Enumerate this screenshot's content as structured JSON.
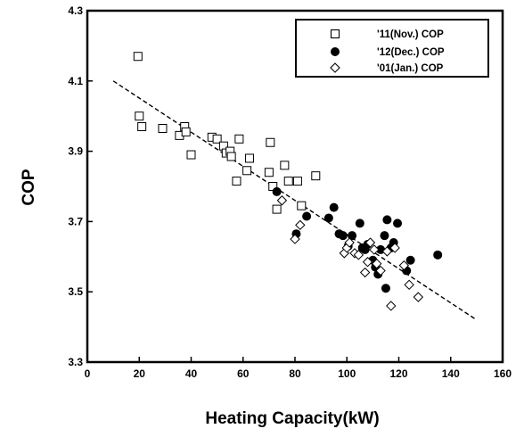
{
  "chart_data": {
    "type": "scatter",
    "xlabel": "Heating Capacity(kW)",
    "ylabel": "COP",
    "xlim": [
      0,
      160
    ],
    "ylim": [
      3.3,
      4.3
    ],
    "xticks": [
      0,
      20,
      40,
      60,
      80,
      100,
      120,
      140,
      160
    ],
    "xtick_labels": [
      "0",
      "20",
      "40",
      "60",
      "80",
      "100",
      "120",
      "140",
      "160"
    ],
    "yticks": [
      3.3,
      3.5,
      3.7,
      3.9,
      4.1,
      4.3
    ],
    "ytick_labels": [
      "3.3",
      "3.5",
      "3.7",
      "3.9",
      "4.1",
      "4.3"
    ],
    "grid": false,
    "legend_position": "top-right",
    "series": [
      {
        "name": "'11(Nov.) COP",
        "marker": "open-square",
        "points": [
          [
            19.5,
            4.17
          ],
          [
            20,
            4.0
          ],
          [
            21,
            3.97
          ],
          [
            29,
            3.965
          ],
          [
            35.5,
            3.945
          ],
          [
            37.5,
            3.97
          ],
          [
            38,
            3.955
          ],
          [
            40,
            3.89
          ],
          [
            48,
            3.94
          ],
          [
            50,
            3.935
          ],
          [
            52.5,
            3.915
          ],
          [
            53.5,
            3.895
          ],
          [
            55,
            3.9
          ],
          [
            55.5,
            3.885
          ],
          [
            57.5,
            3.815
          ],
          [
            58.5,
            3.935
          ],
          [
            61.5,
            3.845
          ],
          [
            62.5,
            3.88
          ],
          [
            70.5,
            3.925
          ],
          [
            70,
            3.84
          ],
          [
            71.5,
            3.8
          ],
          [
            73,
            3.735
          ],
          [
            76,
            3.86
          ],
          [
            77.5,
            3.815
          ],
          [
            81,
            3.815
          ],
          [
            82.5,
            3.745
          ],
          [
            88,
            3.83
          ]
        ]
      },
      {
        "name": "'12(Dec.) COP",
        "marker": "filled-circle",
        "points": [
          [
            73,
            3.785
          ],
          [
            80.5,
            3.665
          ],
          [
            84.5,
            3.715
          ],
          [
            93,
            3.71
          ],
          [
            95,
            3.74
          ],
          [
            97,
            3.665
          ],
          [
            98.5,
            3.66
          ],
          [
            100.5,
            3.63
          ],
          [
            102,
            3.66
          ],
          [
            105,
            3.695
          ],
          [
            106,
            3.625
          ],
          [
            107,
            3.62
          ],
          [
            108,
            3.635
          ],
          [
            110,
            3.59
          ],
          [
            111,
            3.57
          ],
          [
            112,
            3.55
          ],
          [
            112.5,
            3.56
          ],
          [
            113,
            3.62
          ],
          [
            114.5,
            3.66
          ],
          [
            115,
            3.51
          ],
          [
            115.5,
            3.705
          ],
          [
            117,
            3.625
          ],
          [
            118,
            3.64
          ],
          [
            119.5,
            3.695
          ],
          [
            123,
            3.56
          ],
          [
            124.5,
            3.59
          ],
          [
            135,
            3.605
          ]
        ]
      },
      {
        "name": "'01(Jan.) COP",
        "marker": "open-diamond",
        "points": [
          [
            75,
            3.76
          ],
          [
            80,
            3.65
          ],
          [
            82,
            3.69
          ],
          [
            99,
            3.61
          ],
          [
            100,
            3.625
          ],
          [
            101,
            3.64
          ],
          [
            103,
            3.61
          ],
          [
            104.5,
            3.605
          ],
          [
            107,
            3.555
          ],
          [
            108,
            3.585
          ],
          [
            109,
            3.64
          ],
          [
            110.5,
            3.62
          ],
          [
            111.5,
            3.58
          ],
          [
            113,
            3.56
          ],
          [
            115.5,
            3.615
          ],
          [
            117,
            3.46
          ],
          [
            118.5,
            3.625
          ],
          [
            122,
            3.575
          ],
          [
            124,
            3.52
          ],
          [
            127.5,
            3.485
          ]
        ]
      }
    ],
    "trendline": {
      "style": "dashed",
      "x": [
        10,
        150
      ],
      "y": [
        4.1,
        3.42
      ]
    }
  }
}
